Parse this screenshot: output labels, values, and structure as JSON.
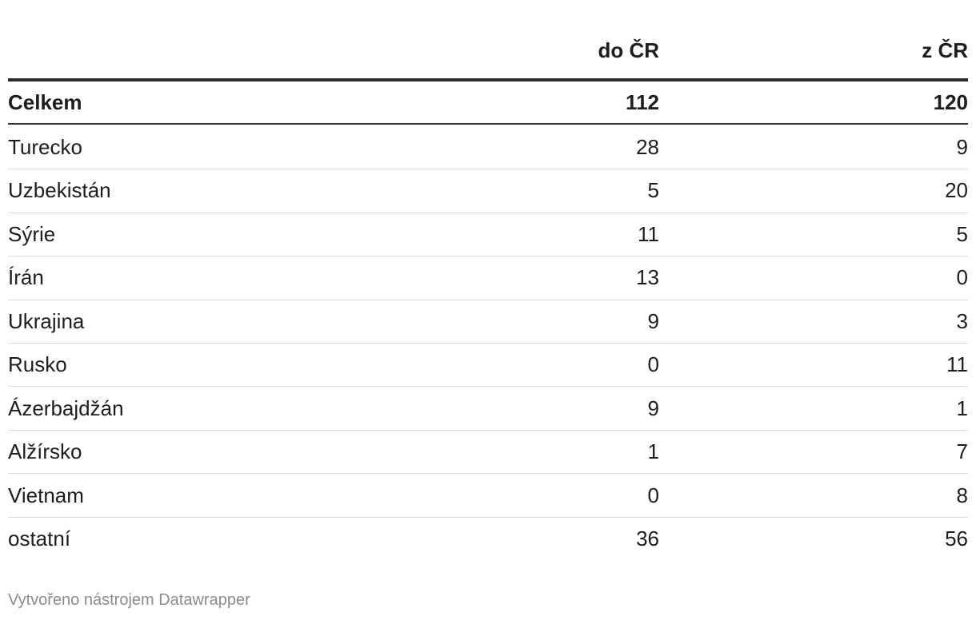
{
  "table": {
    "columns": [
      "do ČR",
      "z ČR"
    ],
    "total": [
      "Celkem",
      112,
      120
    ],
    "rows": [
      [
        "Turecko",
        28,
        9
      ],
      [
        "Uzbekistán",
        5,
        20
      ],
      [
        "Sýrie",
        11,
        5
      ],
      [
        "Írán",
        13,
        0
      ],
      [
        "Ukrajina",
        9,
        3
      ],
      [
        "Rusko",
        0,
        11
      ],
      [
        "Ázerbajdžán",
        9,
        1
      ],
      [
        "Alžírsko",
        1,
        7
      ],
      [
        "Vietnam",
        0,
        8
      ],
      [
        "ostatní",
        36,
        56
      ]
    ]
  },
  "footer": "Vytvořeno nástrojem Datawrapper"
}
